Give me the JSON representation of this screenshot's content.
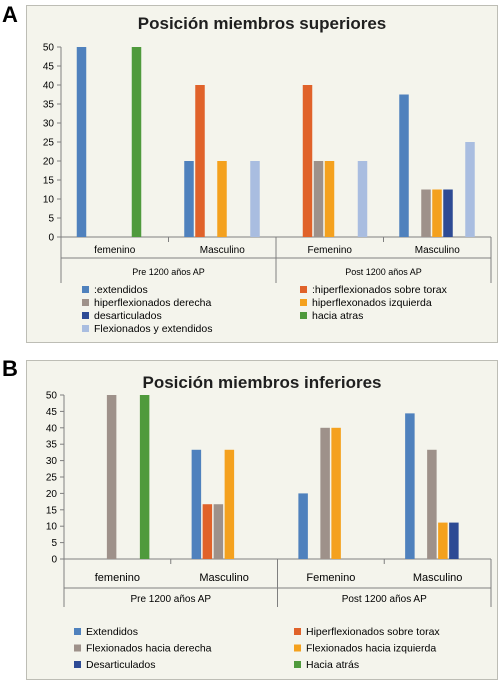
{
  "panels": [
    {
      "letter": "A"
    },
    {
      "letter": "B"
    }
  ],
  "chart_data": [
    {
      "type": "bar",
      "title": "Posición miembros superiores",
      "ylim": [
        0,
        50
      ],
      "yticks": [
        0,
        5,
        10,
        15,
        20,
        25,
        30,
        35,
        40,
        45,
        50
      ],
      "categories": [
        "femenino",
        "Masculino",
        "Femenino",
        "Masculino"
      ],
      "groups": [
        {
          "label": "Pre 1200 años AP",
          "categories": [
            0,
            1
          ]
        },
        {
          "label": "Post 1200 años AP",
          "categories": [
            2,
            3
          ]
        }
      ],
      "grid": false,
      "legend_position": "bottom",
      "series": [
        {
          "name": ":extendidos",
          "color": "#4f81bd",
          "values": [
            50,
            20,
            0,
            37.5
          ]
        },
        {
          "name": ":hiperflexionados sobre torax",
          "color": "#e0622a",
          "values": [
            0,
            40,
            40,
            0
          ]
        },
        {
          "name": "hiperflexionados derecha",
          "color": "#9e918a",
          "values": [
            0,
            0,
            20,
            12.5
          ]
        },
        {
          "name": "hiperflexonados izquierda",
          "color": "#f4a11e",
          "values": [
            0,
            20,
            20,
            12.5
          ]
        },
        {
          "name": "desarticulados",
          "color": "#2d4a94",
          "values": [
            0,
            0,
            0,
            12.5
          ]
        },
        {
          "name": "hacia atras",
          "color": "#4f9a3c",
          "values": [
            50,
            0,
            0,
            0
          ]
        },
        {
          "name": "Flexionados y extendidos",
          "color": "#a9bde0",
          "values": [
            0,
            20,
            20,
            25
          ]
        }
      ]
    },
    {
      "type": "bar",
      "title": "Posición miembros inferiores",
      "ylim": [
        0,
        50
      ],
      "yticks": [
        0,
        5,
        10,
        15,
        20,
        25,
        30,
        35,
        40,
        45,
        50
      ],
      "categories": [
        "femenino",
        "Masculino",
        "Femenino",
        "Masculino"
      ],
      "groups": [
        {
          "label": "Pre 1200 años AP",
          "categories": [
            0,
            1
          ]
        },
        {
          "label": "Post 1200 años AP",
          "categories": [
            2,
            3
          ]
        }
      ],
      "grid": false,
      "legend_position": "bottom",
      "series": [
        {
          "name": "Extendidos",
          "color": "#4f81bd",
          "values": [
            0,
            33.3,
            20,
            44.4
          ]
        },
        {
          "name": "Hiperflexionados sobre torax",
          "color": "#e0622a",
          "values": [
            0,
            16.7,
            0,
            0
          ]
        },
        {
          "name": "Flexionados hacia derecha",
          "color": "#9e918a",
          "values": [
            50,
            16.7,
            40,
            33.3
          ]
        },
        {
          "name": "Flexionados hacia izquierda",
          "color": "#f4a11e",
          "values": [
            0,
            33.3,
            40,
            11.1
          ]
        },
        {
          "name": "Desarticulados",
          "color": "#2d4a94",
          "values": [
            0,
            0,
            0,
            11.1
          ]
        },
        {
          "name": "Hacia atrás",
          "color": "#4f9a3c",
          "values": [
            50,
            0,
            0,
            0
          ]
        }
      ]
    }
  ]
}
